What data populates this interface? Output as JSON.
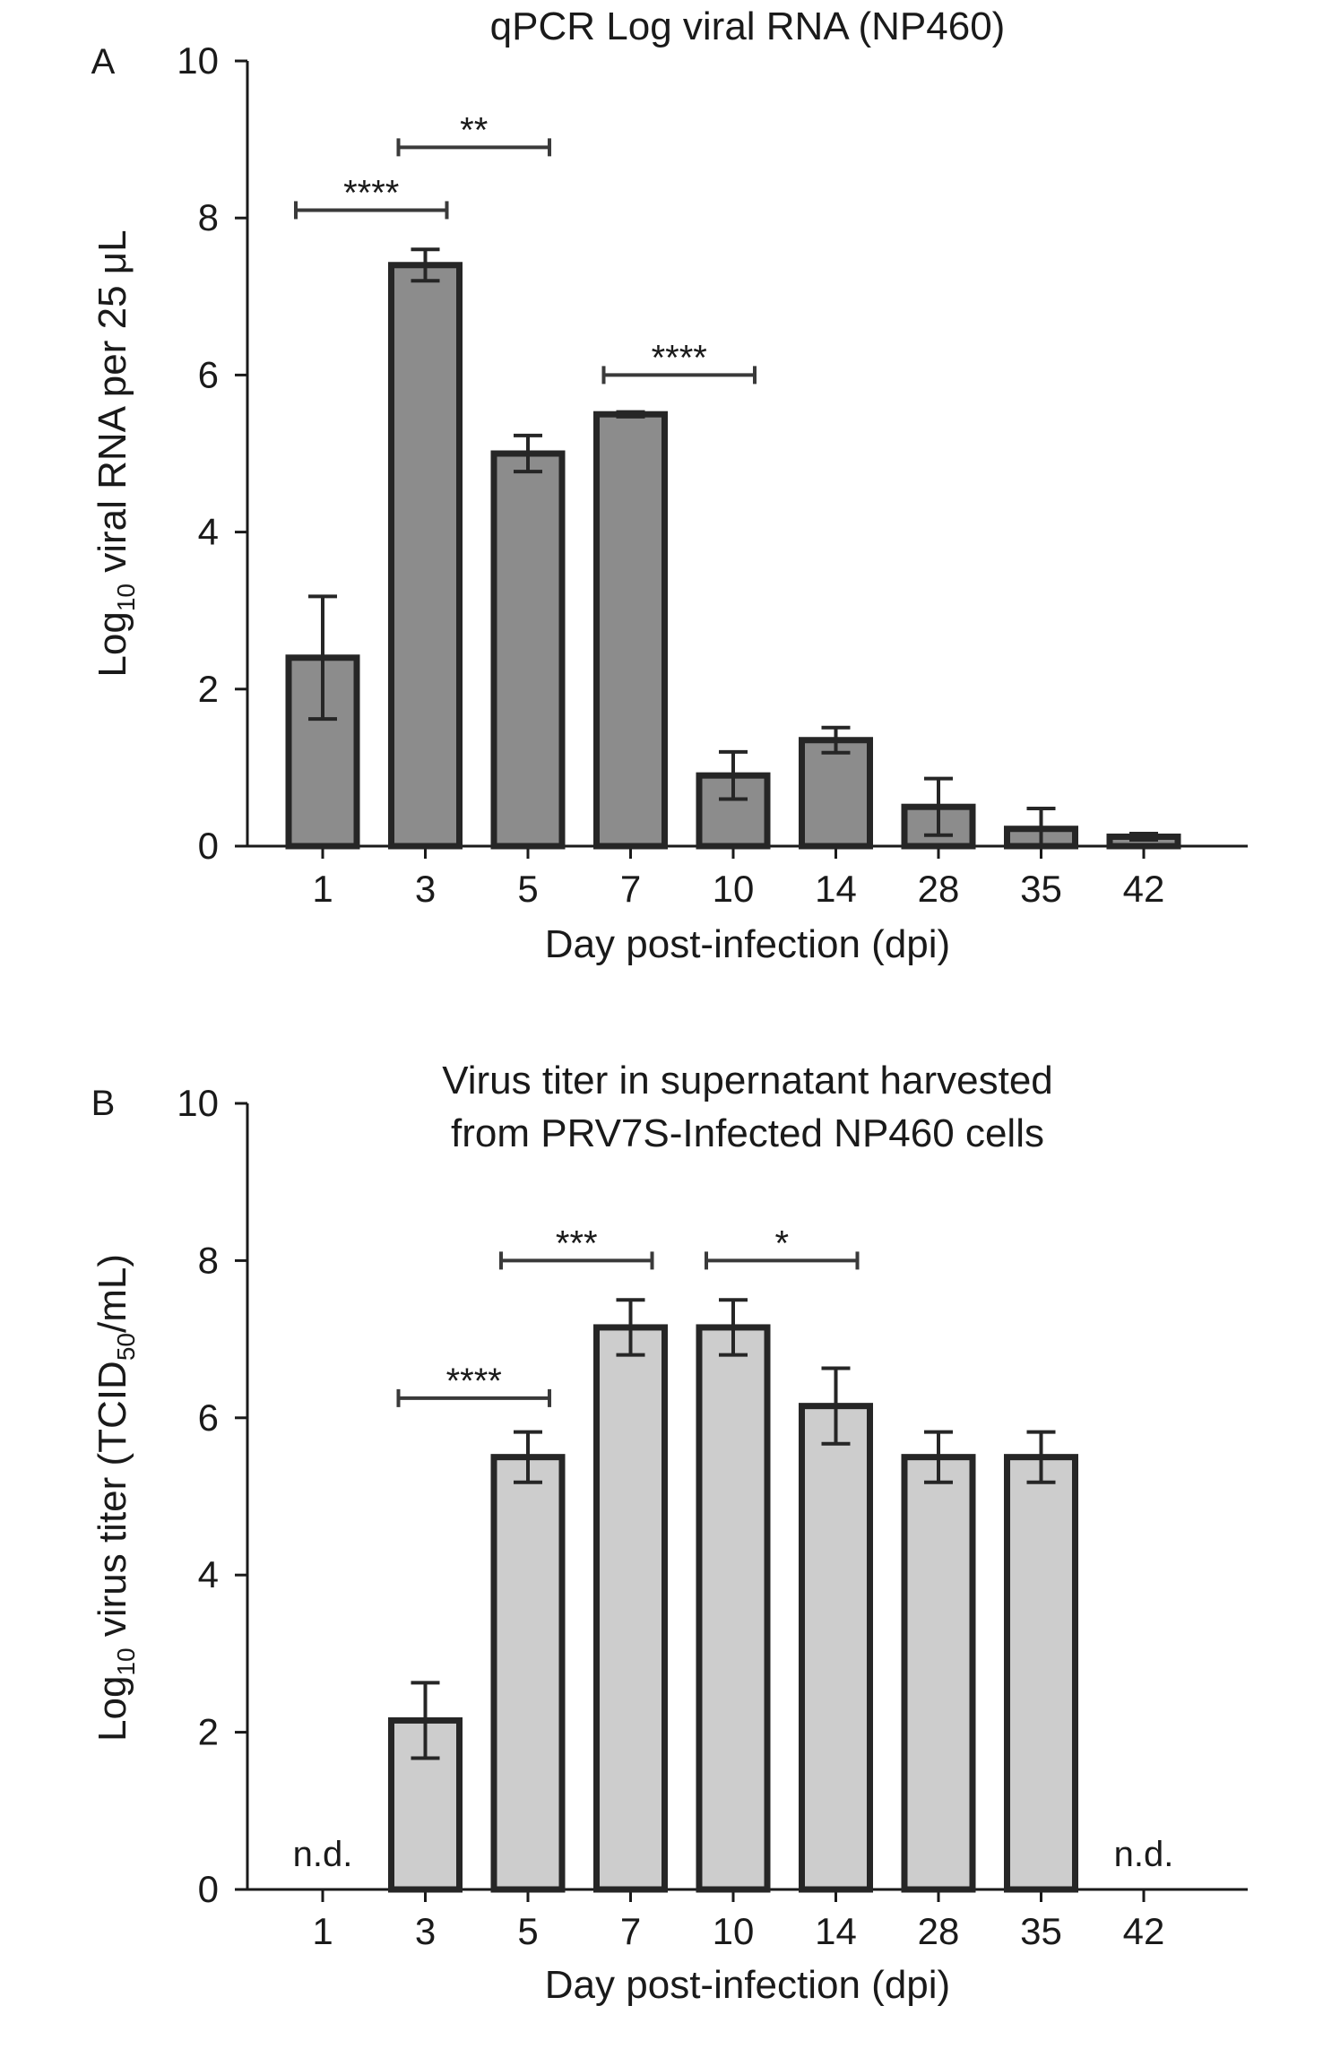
{
  "chart_data": [
    {
      "type": "bar",
      "panel_label": "A",
      "title": [
        "qPCR Log viral RNA (NP460)"
      ],
      "xlabel": "Day post-infection (dpi)",
      "ylabel": {
        "prefix": "Log",
        "sub": "10",
        "suffix": " viral RNA per 25 μL"
      },
      "ylim": [
        0,
        10
      ],
      "yticks": [
        "0",
        "2",
        "4",
        "6",
        "8",
        "10"
      ],
      "categories": [
        "1",
        "3",
        "5",
        "7",
        "10",
        "14",
        "28",
        "35",
        "42"
      ],
      "values": [
        2.4,
        7.4,
        5.0,
        5.5,
        0.9,
        1.35,
        0.5,
        0.22,
        0.12
      ],
      "errors": [
        0.78,
        0.2,
        0.23,
        0.03,
        0.3,
        0.16,
        0.36,
        0.26,
        0.04
      ],
      "bar_color": "#8c8c8c",
      "significance": [
        {
          "from": 0,
          "to": 1,
          "label": "****",
          "y": 8.1
        },
        {
          "from": 1,
          "to": 2,
          "label": "**",
          "y": 8.9
        },
        {
          "from": 3,
          "to": 4,
          "label": "****",
          "y": 6.0
        }
      ],
      "annotations": []
    },
    {
      "type": "bar",
      "panel_label": "B",
      "title": [
        "Virus titer in supernatant harvested",
        "from PRV7S-Infected NP460 cells"
      ],
      "xlabel": "Day post-infection (dpi)",
      "ylabel": {
        "prefix": "Log",
        "sub": "10",
        "suffix": " virus titer (TCID",
        "sub2": "50",
        "suffix2": "/mL)"
      },
      "ylim": [
        0,
        10
      ],
      "yticks": [
        "0",
        "2",
        "4",
        "6",
        "8",
        "10"
      ],
      "categories": [
        "1",
        "3",
        "5",
        "7",
        "10",
        "14",
        "28",
        "35",
        "42"
      ],
      "values": [
        null,
        2.15,
        5.5,
        7.15,
        7.15,
        6.15,
        5.5,
        5.5,
        null
      ],
      "errors": [
        null,
        0.48,
        0.32,
        0.35,
        0.35,
        0.48,
        0.32,
        0.32,
        null
      ],
      "bar_color": "#cdcdcd",
      "significance": [
        {
          "from": 1,
          "to": 2,
          "label": "****",
          "y": 6.25
        },
        {
          "from": 2,
          "to": 3,
          "label": "***",
          "y": 8.0
        },
        {
          "from": 4,
          "to": 5,
          "label": "*",
          "y": 8.0
        }
      ],
      "annotations": [
        {
          "category": 0,
          "text": "n.d."
        },
        {
          "category": 8,
          "text": "n.d."
        }
      ]
    }
  ]
}
